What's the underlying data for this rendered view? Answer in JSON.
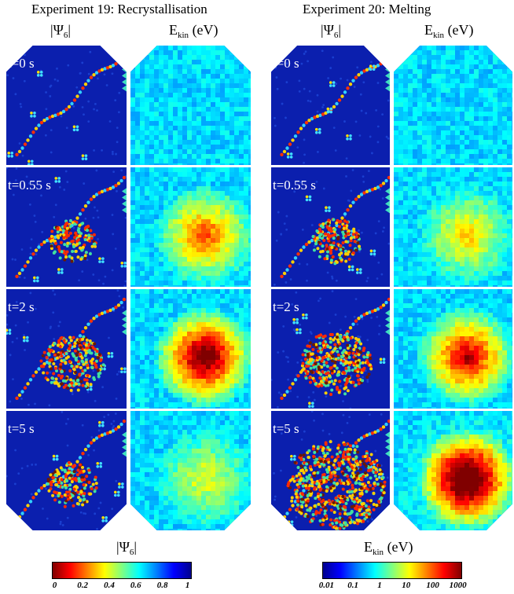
{
  "experiments": [
    {
      "title": "Experiment 19: Recrystallisation",
      "psi_header": "|Ψ",
      "psi_sub": "6",
      "ekin_header": "E",
      "ekin_sub": "kin",
      "ekin_unit": " (eV)"
    },
    {
      "title": "Experiment 20: Melting",
      "psi_header": "|Ψ",
      "psi_sub": "6",
      "ekin_header": "E",
      "ekin_sub": "kin",
      "ekin_unit": " (eV)"
    }
  ],
  "time_labels": [
    "t=0 s",
    "t=0.55 s",
    "t=2 s",
    "t=5 s"
  ],
  "psi_colorbar": {
    "label_main": "|Ψ",
    "label_sub": "6",
    "label_end": "|",
    "ticks": [
      "0",
      "0.2",
      "0.4",
      "0.6",
      "0.8",
      "1"
    ]
  },
  "ekin_colorbar": {
    "label_main": "E",
    "label_sub": "kin",
    "label_end": " (eV)",
    "ticks": [
      "0.01",
      "0.1",
      "1",
      "10",
      "100",
      "1000"
    ]
  },
  "colors": {
    "background_blue": "#0b1fae",
    "jet_low": "#00008f",
    "jet_mid": "#7fff7f",
    "jet_high": "#7f0000"
  }
}
